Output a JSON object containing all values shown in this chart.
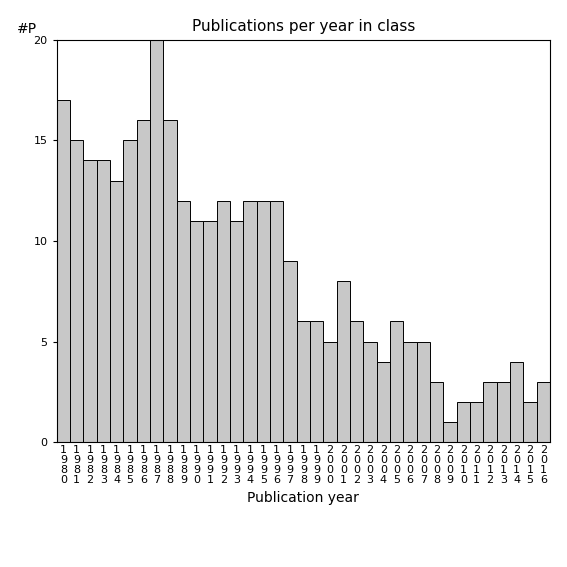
{
  "title": "Publications per year in class",
  "xlabel": "Publication year",
  "ylabel": "#P",
  "bar_color": "#c8c8c8",
  "edge_color": "#000000",
  "ylim": [
    0,
    20
  ],
  "yticks": [
    0,
    5,
    10,
    15,
    20
  ],
  "categories": [
    "1980",
    "1981",
    "1982",
    "1983",
    "1984",
    "1985",
    "1986",
    "1987",
    "1988",
    "1989",
    "1990",
    "1991",
    "1992",
    "1993",
    "1994",
    "1995",
    "1996",
    "1997",
    "1998",
    "1999",
    "2000",
    "2001",
    "2002",
    "2003",
    "2004",
    "2005",
    "2006",
    "2007",
    "2008",
    "2009",
    "2010",
    "2011",
    "2012",
    "2013",
    "2014",
    "2015",
    "2016"
  ],
  "values": [
    17,
    15,
    14,
    14,
    13,
    15,
    16,
    20,
    16,
    12,
    11,
    11,
    12,
    11,
    12,
    12,
    12,
    9,
    6,
    6,
    5,
    8,
    6,
    5,
    4,
    6,
    5,
    5,
    3,
    1,
    2,
    2,
    3,
    3,
    4,
    2,
    3
  ],
  "background_color": "#ffffff",
  "title_fontsize": 11,
  "axis_fontsize": 10,
  "tick_fontsize": 8,
  "figsize": [
    5.67,
    5.67
  ],
  "dpi": 100
}
